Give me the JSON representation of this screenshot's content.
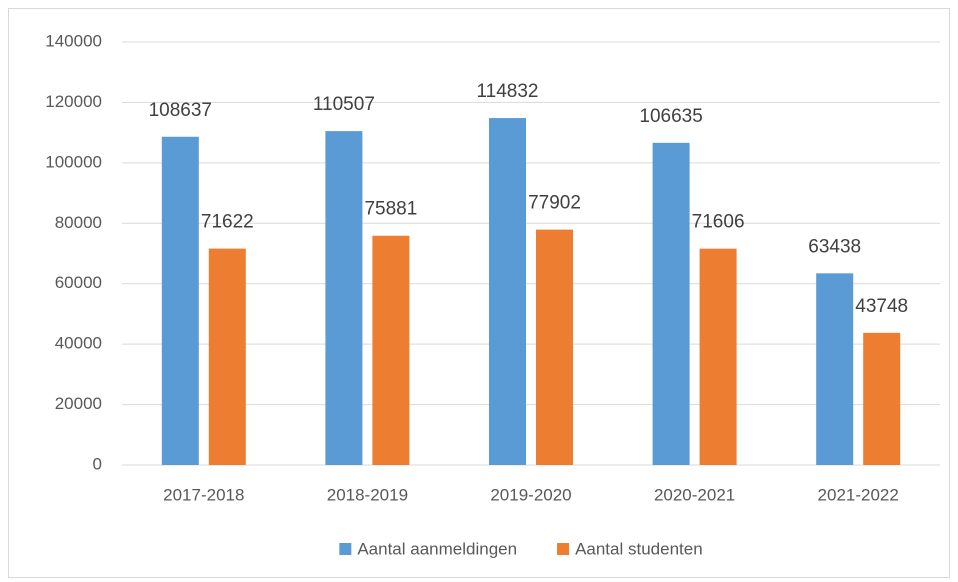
{
  "chart_data": {
    "type": "bar",
    "categories": [
      "2017-2018",
      "2018-2019",
      "2019-2020",
      "2020-2021",
      "2021-2022"
    ],
    "series": [
      {
        "name": "Aantal aanmeldingen",
        "color": "#5b9bd5",
        "values": [
          108637,
          110507,
          114832,
          106635,
          63438
        ]
      },
      {
        "name": "Aantal studenten",
        "color": "#ed7d31",
        "values": [
          71622,
          75881,
          77902,
          71606,
          43748
        ]
      }
    ],
    "ylim": [
      0,
      140000
    ],
    "yticks": [
      0,
      20000,
      40000,
      60000,
      80000,
      100000,
      120000,
      140000
    ],
    "grid": true,
    "legend": "bottom"
  }
}
